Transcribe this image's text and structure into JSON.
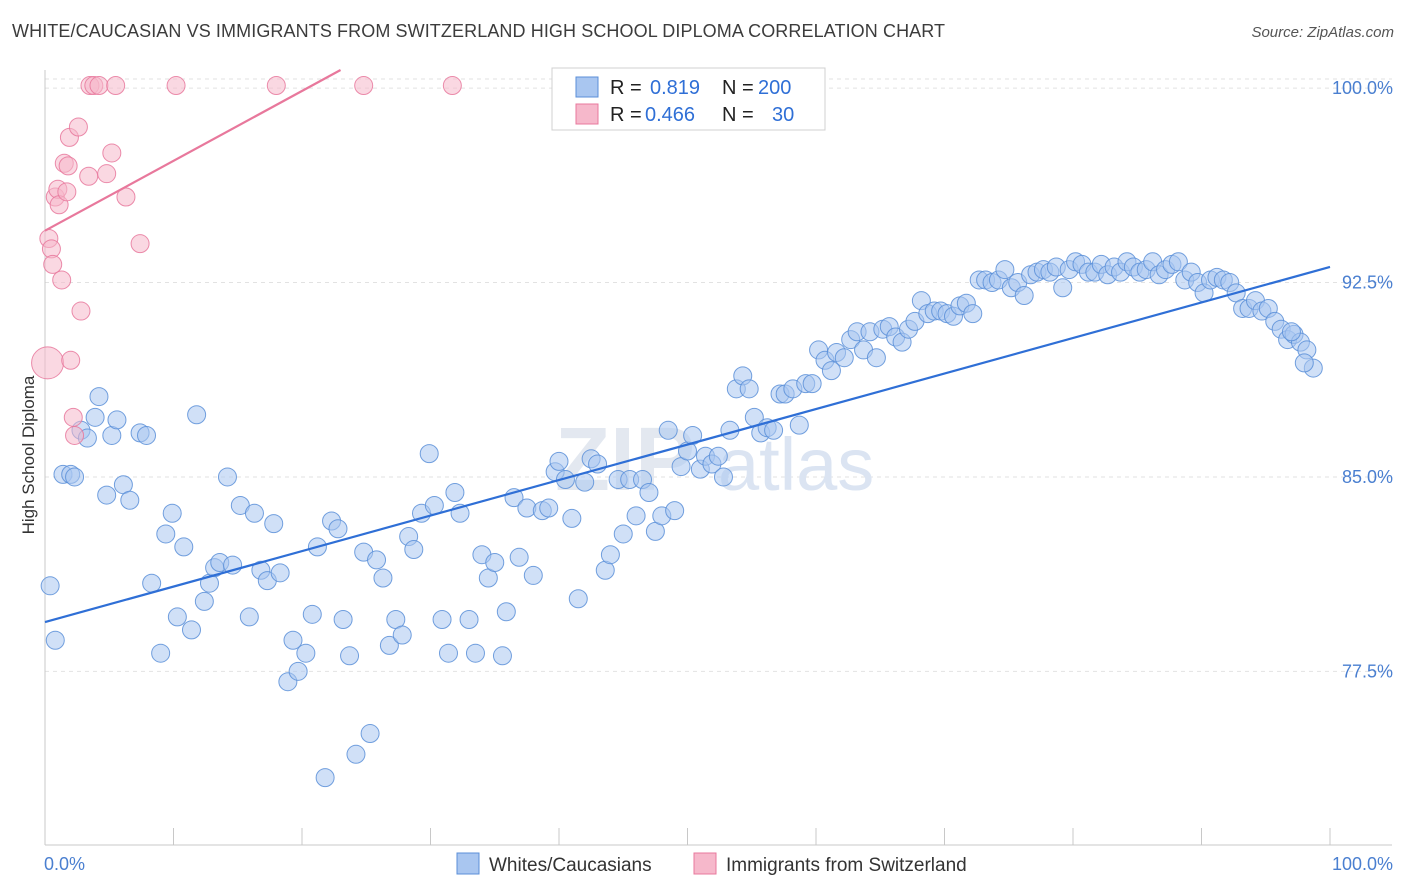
{
  "title": "WHITE/CAUCASIAN VS IMMIGRANTS FROM SWITZERLAND HIGH SCHOOL DIPLOMA CORRELATION CHART",
  "source": "Source: ZipAtlas.com",
  "watermark": {
    "part1": "ZIP",
    "part2": "atlas"
  },
  "legend": {
    "rows": [
      {
        "r_label": "R =",
        "r_value": "0.819",
        "n_label": "N =",
        "n_value": "200",
        "color": "#a9c6f0"
      },
      {
        "r_label": "R =",
        "r_value": "0.466",
        "n_label": "N =",
        "n_value": "30",
        "color": "#f6b8cb"
      }
    ]
  },
  "bottom_legend": {
    "items": [
      {
        "label": "Whites/Caucasians",
        "color": "#a9c6f0"
      },
      {
        "label": "Immigrants from Switzerland",
        "color": "#f6b8cb"
      }
    ]
  },
  "chart_data": {
    "type": "scatter",
    "title": "WHITE/CAUCASIAN VS IMMIGRANTS FROM SWITZERLAND HIGH SCHOOL DIPLOMA CORRELATION CHART",
    "ylabel": "High School Diploma",
    "xlabel": "",
    "x_tick_labels": [
      "0.0%",
      "100.0%"
    ],
    "y_tick_labels": [
      "100.0%",
      "92.5%",
      "85.0%",
      "77.5%"
    ],
    "y_ticks": [
      100.0,
      92.5,
      85.0,
      77.5
    ],
    "xlim": [
      0,
      100
    ],
    "ylim": [
      70.8,
      100.7
    ],
    "grid": true,
    "legend_position": "top-center",
    "series": [
      {
        "name": "Whites/Caucasians",
        "color": "#5b8fd8",
        "fill": "#a9c6f0",
        "trend": {
          "x": [
            0,
            100
          ],
          "y": [
            79.4,
            93.1
          ]
        },
        "points": [
          [
            0.4,
            80.8
          ],
          [
            0.8,
            78.7
          ],
          [
            1.4,
            85.1
          ],
          [
            2.0,
            85.1
          ],
          [
            2.3,
            85.0
          ],
          [
            2.8,
            86.8
          ],
          [
            3.3,
            86.5
          ],
          [
            3.9,
            87.3
          ],
          [
            4.2,
            88.1
          ],
          [
            4.8,
            84.3
          ],
          [
            5.2,
            86.6
          ],
          [
            5.6,
            87.2
          ],
          [
            6.1,
            84.7
          ],
          [
            6.6,
            84.1
          ],
          [
            7.4,
            86.7
          ],
          [
            7.9,
            86.6
          ],
          [
            8.3,
            80.9
          ],
          [
            9.0,
            78.2
          ],
          [
            9.4,
            82.8
          ],
          [
            9.9,
            83.6
          ],
          [
            10.3,
            79.6
          ],
          [
            10.8,
            82.3
          ],
          [
            11.4,
            79.1
          ],
          [
            11.8,
            87.4
          ],
          [
            12.4,
            80.2
          ],
          [
            12.8,
            80.9
          ],
          [
            13.2,
            81.5
          ],
          [
            13.6,
            81.7
          ],
          [
            14.2,
            85.0
          ],
          [
            14.6,
            81.6
          ],
          [
            15.2,
            83.9
          ],
          [
            15.9,
            79.6
          ],
          [
            16.3,
            83.6
          ],
          [
            16.8,
            81.4
          ],
          [
            17.3,
            81.0
          ],
          [
            17.8,
            83.2
          ],
          [
            18.3,
            81.3
          ],
          [
            18.9,
            77.1
          ],
          [
            19.3,
            78.7
          ],
          [
            19.7,
            77.5
          ],
          [
            20.3,
            78.2
          ],
          [
            20.8,
            79.7
          ],
          [
            21.2,
            82.3
          ],
          [
            21.8,
            73.4
          ],
          [
            22.3,
            83.3
          ],
          [
            22.8,
            83.0
          ],
          [
            23.2,
            79.5
          ],
          [
            23.7,
            78.1
          ],
          [
            24.2,
            74.3
          ],
          [
            24.8,
            82.1
          ],
          [
            25.3,
            75.1
          ],
          [
            25.8,
            81.8
          ],
          [
            26.3,
            81.1
          ],
          [
            26.8,
            78.5
          ],
          [
            27.3,
            79.5
          ],
          [
            27.8,
            78.9
          ],
          [
            28.3,
            82.7
          ],
          [
            28.7,
            82.2
          ],
          [
            29.3,
            83.6
          ],
          [
            29.9,
            85.9
          ],
          [
            30.3,
            83.9
          ],
          [
            30.9,
            79.5
          ],
          [
            31.4,
            78.2
          ],
          [
            31.9,
            84.4
          ],
          [
            32.3,
            83.6
          ],
          [
            33.0,
            79.5
          ],
          [
            33.5,
            78.2
          ],
          [
            34.0,
            82.0
          ],
          [
            34.5,
            81.1
          ],
          [
            35.0,
            81.7
          ],
          [
            35.6,
            78.1
          ],
          [
            35.9,
            79.8
          ],
          [
            36.5,
            84.2
          ],
          [
            36.9,
            81.9
          ],
          [
            37.5,
            83.8
          ],
          [
            38.0,
            81.2
          ],
          [
            38.7,
            83.7
          ],
          [
            39.2,
            83.8
          ],
          [
            39.7,
            85.2
          ],
          [
            40.0,
            85.6
          ],
          [
            40.5,
            84.9
          ],
          [
            41.0,
            83.4
          ],
          [
            41.5,
            80.3
          ],
          [
            42.0,
            84.8
          ],
          [
            42.5,
            85.7
          ],
          [
            43.0,
            85.5
          ],
          [
            43.6,
            81.4
          ],
          [
            44.0,
            82.0
          ],
          [
            44.6,
            84.9
          ],
          [
            45.0,
            82.8
          ],
          [
            45.5,
            84.9
          ],
          [
            46.0,
            83.5
          ],
          [
            46.5,
            84.9
          ],
          [
            47.0,
            84.4
          ],
          [
            47.5,
            82.9
          ],
          [
            48.0,
            83.5
          ],
          [
            48.5,
            86.8
          ],
          [
            49.0,
            83.7
          ],
          [
            49.5,
            85.4
          ],
          [
            50.0,
            86.0
          ],
          [
            50.4,
            86.6
          ],
          [
            51.0,
            85.3
          ],
          [
            51.4,
            85.8
          ],
          [
            51.9,
            85.5
          ],
          [
            52.4,
            85.8
          ],
          [
            52.8,
            85.0
          ],
          [
            53.3,
            86.8
          ],
          [
            53.8,
            88.4
          ],
          [
            54.3,
            88.9
          ],
          [
            54.8,
            88.4
          ],
          [
            55.2,
            87.3
          ],
          [
            55.7,
            86.7
          ],
          [
            56.2,
            86.9
          ],
          [
            56.7,
            86.8
          ],
          [
            57.2,
            88.2
          ],
          [
            57.6,
            88.2
          ],
          [
            58.2,
            88.4
          ],
          [
            58.7,
            87.0
          ],
          [
            59.2,
            88.6
          ],
          [
            59.7,
            88.6
          ],
          [
            60.2,
            89.9
          ],
          [
            60.7,
            89.5
          ],
          [
            61.2,
            89.1
          ],
          [
            61.6,
            89.8
          ],
          [
            62.2,
            89.6
          ],
          [
            62.7,
            90.3
          ],
          [
            63.2,
            90.6
          ],
          [
            63.7,
            89.9
          ],
          [
            64.2,
            90.6
          ],
          [
            64.7,
            89.6
          ],
          [
            65.2,
            90.7
          ],
          [
            65.7,
            90.8
          ],
          [
            66.2,
            90.4
          ],
          [
            66.7,
            90.2
          ],
          [
            67.2,
            90.7
          ],
          [
            67.7,
            91.0
          ],
          [
            68.2,
            91.8
          ],
          [
            68.7,
            91.3
          ],
          [
            69.2,
            91.4
          ],
          [
            69.7,
            91.4
          ],
          [
            70.2,
            91.3
          ],
          [
            70.7,
            91.2
          ],
          [
            71.2,
            91.6
          ],
          [
            71.7,
            91.7
          ],
          [
            72.2,
            91.3
          ],
          [
            72.7,
            92.6
          ],
          [
            73.2,
            92.6
          ],
          [
            73.7,
            92.5
          ],
          [
            74.2,
            92.6
          ],
          [
            74.7,
            93.0
          ],
          [
            75.2,
            92.3
          ],
          [
            75.7,
            92.5
          ],
          [
            76.2,
            92.0
          ],
          [
            76.7,
            92.8
          ],
          [
            77.2,
            92.9
          ],
          [
            77.7,
            93.0
          ],
          [
            78.2,
            92.9
          ],
          [
            78.7,
            93.1
          ],
          [
            79.2,
            92.3
          ],
          [
            79.7,
            93.0
          ],
          [
            80.2,
            93.3
          ],
          [
            80.7,
            93.2
          ],
          [
            81.2,
            92.9
          ],
          [
            81.7,
            92.9
          ],
          [
            82.2,
            93.2
          ],
          [
            82.7,
            92.8
          ],
          [
            83.2,
            93.1
          ],
          [
            83.7,
            92.9
          ],
          [
            84.2,
            93.3
          ],
          [
            84.7,
            93.1
          ],
          [
            85.2,
            92.9
          ],
          [
            85.7,
            93.0
          ],
          [
            86.2,
            93.3
          ],
          [
            86.7,
            92.8
          ],
          [
            87.2,
            93.0
          ],
          [
            87.7,
            93.2
          ],
          [
            88.2,
            93.3
          ],
          [
            88.7,
            92.6
          ],
          [
            89.2,
            92.9
          ],
          [
            89.7,
            92.5
          ],
          [
            90.2,
            92.1
          ],
          [
            90.7,
            92.6
          ],
          [
            91.2,
            92.7
          ],
          [
            91.7,
            92.6
          ],
          [
            92.2,
            92.5
          ],
          [
            92.7,
            92.1
          ],
          [
            93.2,
            91.5
          ],
          [
            93.7,
            91.5
          ],
          [
            94.2,
            91.8
          ],
          [
            94.7,
            91.4
          ],
          [
            95.2,
            91.5
          ],
          [
            95.7,
            91.0
          ],
          [
            96.2,
            90.7
          ],
          [
            96.7,
            90.3
          ],
          [
            97.2,
            90.5
          ],
          [
            97.7,
            90.2
          ],
          [
            98.2,
            89.9
          ],
          [
            98.7,
            89.2
          ],
          [
            98.0,
            89.4
          ],
          [
            97.0,
            90.6
          ]
        ]
      },
      {
        "name": "Immigrants from Switzerland",
        "color": "#e8789c",
        "fill": "#f6b8cb",
        "trend": {
          "x": [
            0,
            23
          ],
          "y": [
            94.5,
            100.7
          ]
        },
        "points": [
          [
            0.2,
            89.4
          ],
          [
            0.3,
            94.2
          ],
          [
            0.5,
            93.8
          ],
          [
            0.6,
            93.2
          ],
          [
            0.8,
            95.8
          ],
          [
            1.0,
            96.1
          ],
          [
            1.1,
            95.5
          ],
          [
            1.3,
            92.6
          ],
          [
            1.5,
            97.1
          ],
          [
            1.7,
            96.0
          ],
          [
            1.8,
            97.0
          ],
          [
            1.9,
            98.1
          ],
          [
            2.0,
            89.5
          ],
          [
            2.2,
            87.3
          ],
          [
            2.3,
            86.6
          ],
          [
            2.6,
            98.5
          ],
          [
            2.8,
            91.4
          ],
          [
            3.4,
            96.6
          ],
          [
            3.5,
            100.1
          ],
          [
            3.8,
            100.1
          ],
          [
            4.2,
            100.1
          ],
          [
            4.8,
            96.7
          ],
          [
            5.2,
            97.5
          ],
          [
            5.5,
            100.1
          ],
          [
            6.3,
            95.8
          ],
          [
            7.4,
            94.0
          ],
          [
            10.2,
            100.1
          ],
          [
            18.0,
            100.1
          ],
          [
            24.8,
            100.1
          ],
          [
            31.7,
            100.1
          ]
        ]
      }
    ]
  }
}
